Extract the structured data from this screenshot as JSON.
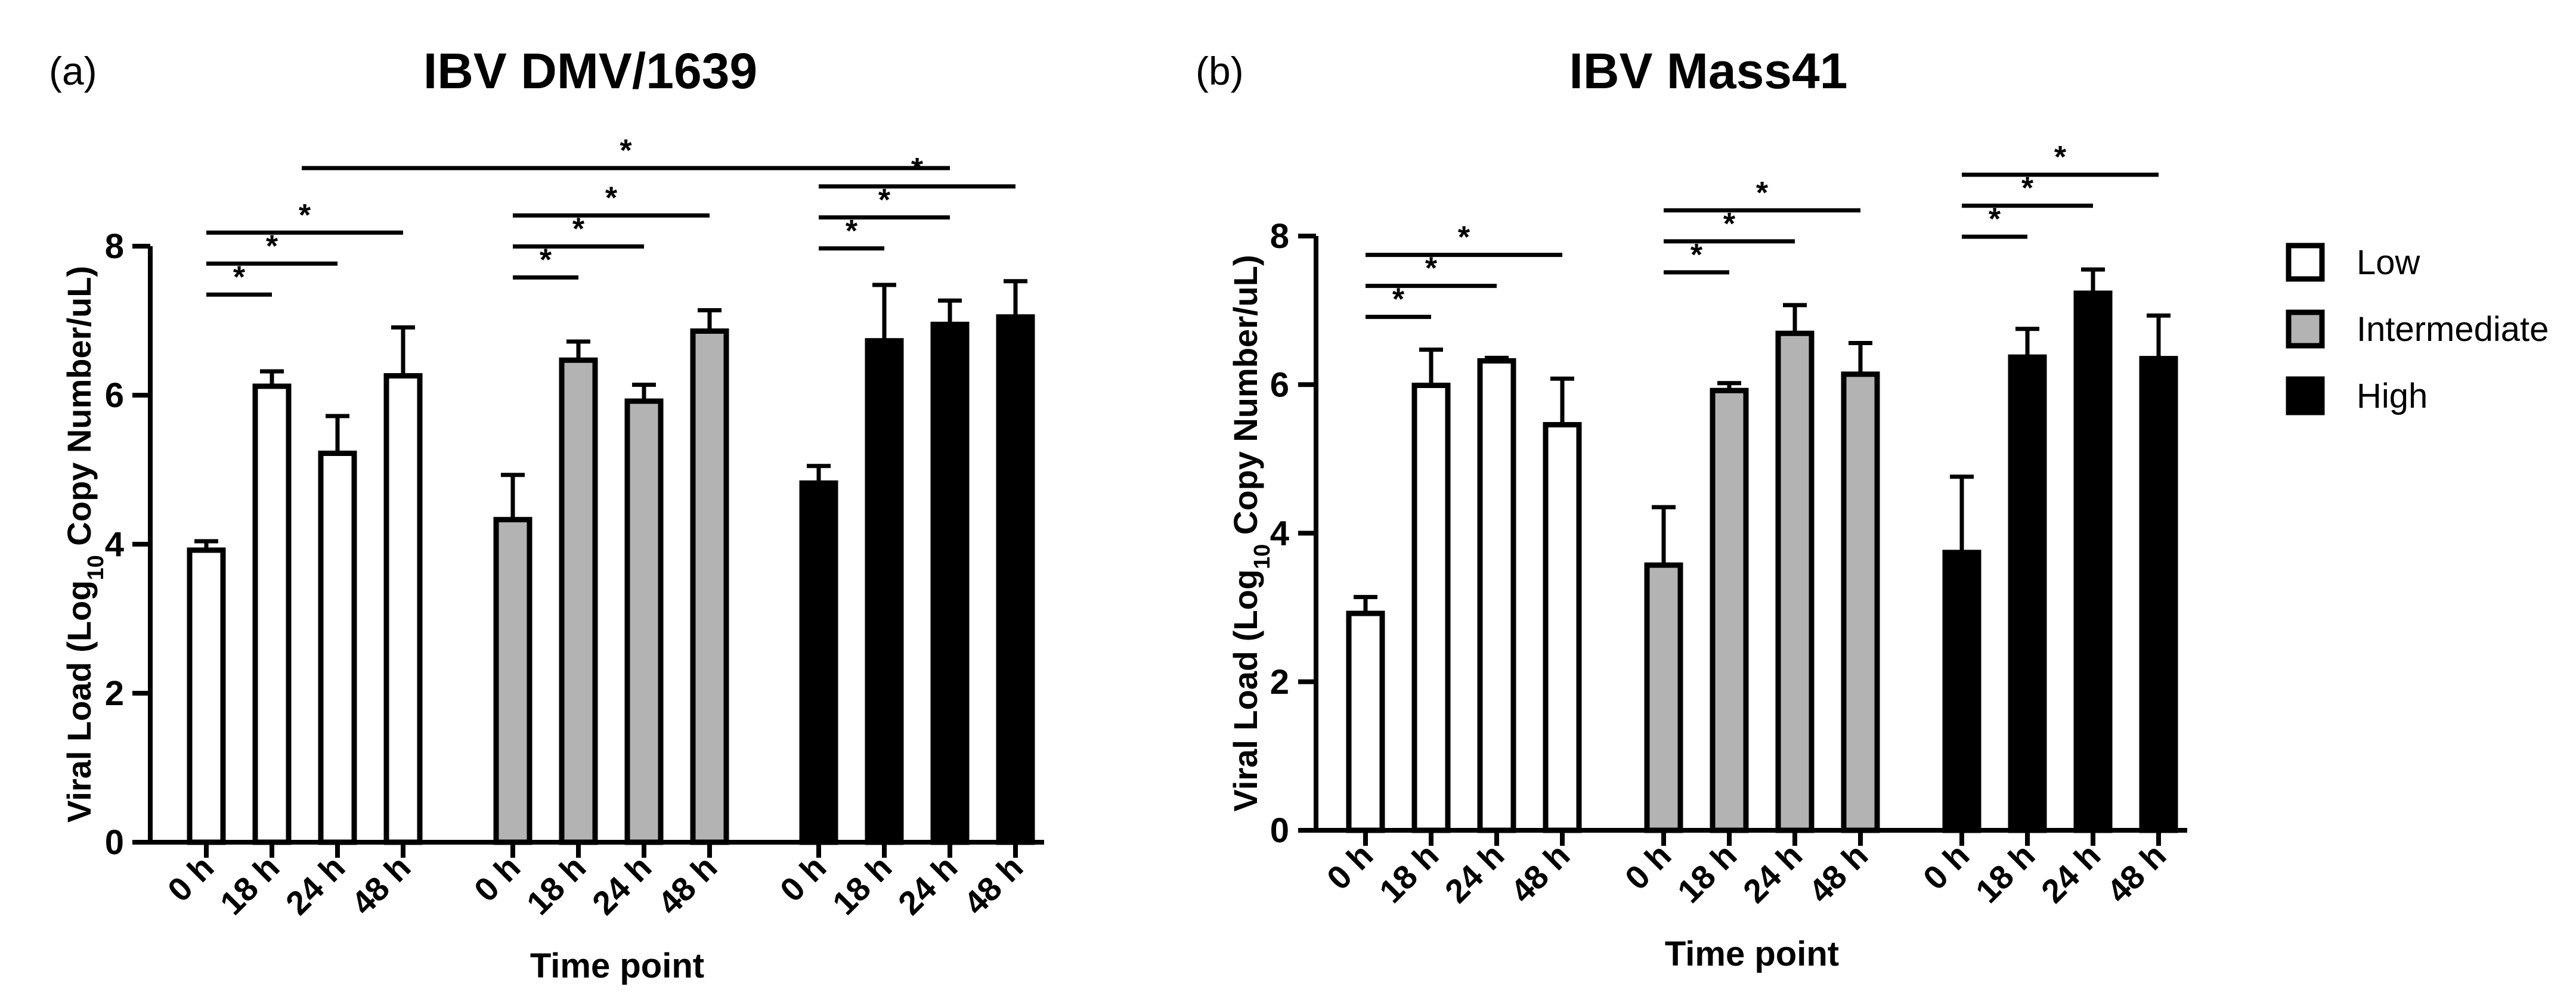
{
  "chart_data": [
    {
      "type": "bar",
      "panel_label": "(a)",
      "title": "IBV DMV/1639",
      "xlabel": "Time point",
      "ylabel_parts": [
        "Viral Load (Log",
        "10",
        " Copy Number/uL)"
      ],
      "ylim": [
        0,
        8
      ],
      "yticks": [
        "0",
        "2",
        "4",
        "6",
        "8"
      ],
      "categories": [
        "0 h",
        "18 h",
        "24 h",
        "48 h"
      ],
      "series": [
        {
          "name": "Low",
          "fill": "#ffffff",
          "values": [
            3.92,
            6.12,
            5.22,
            6.26
          ],
          "errors": [
            0.12,
            0.2,
            0.5,
            0.65
          ]
        },
        {
          "name": "Intermediate",
          "fill": "#b3b3b3",
          "values": [
            4.33,
            6.47,
            5.92,
            6.86
          ],
          "errors": [
            0.6,
            0.25,
            0.22,
            0.28
          ]
        },
        {
          "name": "High",
          "fill": "#000000",
          "values": [
            4.82,
            6.73,
            6.95,
            7.05
          ],
          "errors": [
            0.23,
            0.75,
            0.32,
            0.48
          ]
        }
      ],
      "significance": [
        {
          "group": 0,
          "from": 0,
          "to": 1,
          "label": "*"
        },
        {
          "group": 0,
          "from": 0,
          "to": 2,
          "label": "*"
        },
        {
          "group": 0,
          "from": 0,
          "to": 3,
          "label": "*"
        },
        {
          "group": 1,
          "from": 0,
          "to": 1,
          "label": "*"
        },
        {
          "group": 1,
          "from": 0,
          "to": 2,
          "label": "*"
        },
        {
          "group": 1,
          "from": 0,
          "to": 3,
          "label": "*"
        },
        {
          "group": 2,
          "from": 0,
          "to": 1,
          "label": "*"
        },
        {
          "group": 2,
          "from": 0,
          "to": 2,
          "label": "*"
        },
        {
          "group": 2,
          "from": 0,
          "to": 3,
          "label": "*"
        },
        {
          "group": "cross",
          "fromGroup": 0,
          "fromBar": 2,
          "toGroup": 2,
          "toBar": 2,
          "label": "*"
        }
      ]
    },
    {
      "type": "bar",
      "panel_label": "(b)",
      "title": "IBV Mass41",
      "xlabel": "Time point",
      "ylabel_parts": [
        "Viral Load (Log",
        "10",
        " Copy Number/uL)"
      ],
      "ylim": [
        0,
        8
      ],
      "yticks": [
        "0",
        "2",
        "4",
        "6",
        "8"
      ],
      "categories": [
        "0 h",
        "18 h",
        "24 h",
        "48 h"
      ],
      "series": [
        {
          "name": "Low",
          "fill": "#ffffff",
          "values": [
            2.92,
            5.99,
            6.32,
            5.46
          ],
          "errors": [
            0.22,
            0.48,
            0.04,
            0.62
          ]
        },
        {
          "name": "Intermediate",
          "fill": "#b3b3b3",
          "values": [
            3.57,
            5.92,
            6.69,
            6.14
          ],
          "errors": [
            0.78,
            0.1,
            0.38,
            0.42
          ]
        },
        {
          "name": "High",
          "fill": "#000000",
          "values": [
            3.74,
            6.37,
            7.23,
            6.35
          ],
          "errors": [
            1.02,
            0.38,
            0.32,
            0.58
          ]
        }
      ],
      "significance": [
        {
          "group": 0,
          "from": 0,
          "to": 1,
          "label": "*"
        },
        {
          "group": 0,
          "from": 0,
          "to": 2,
          "label": "*"
        },
        {
          "group": 0,
          "from": 0,
          "to": 3,
          "label": "*"
        },
        {
          "group": 1,
          "from": 0,
          "to": 1,
          "label": "*"
        },
        {
          "group": 1,
          "from": 0,
          "to": 2,
          "label": "*"
        },
        {
          "group": 1,
          "from": 0,
          "to": 3,
          "label": "*"
        },
        {
          "group": 2,
          "from": 0,
          "to": 1,
          "label": "*"
        },
        {
          "group": 2,
          "from": 0,
          "to": 2,
          "label": "*"
        },
        {
          "group": 2,
          "from": 0,
          "to": 3,
          "label": "*"
        }
      ]
    }
  ],
  "legend": [
    {
      "label": "Low",
      "fill": "#ffffff"
    },
    {
      "label": "Intermediate",
      "fill": "#b3b3b3"
    },
    {
      "label": "High",
      "fill": "#000000"
    }
  ]
}
